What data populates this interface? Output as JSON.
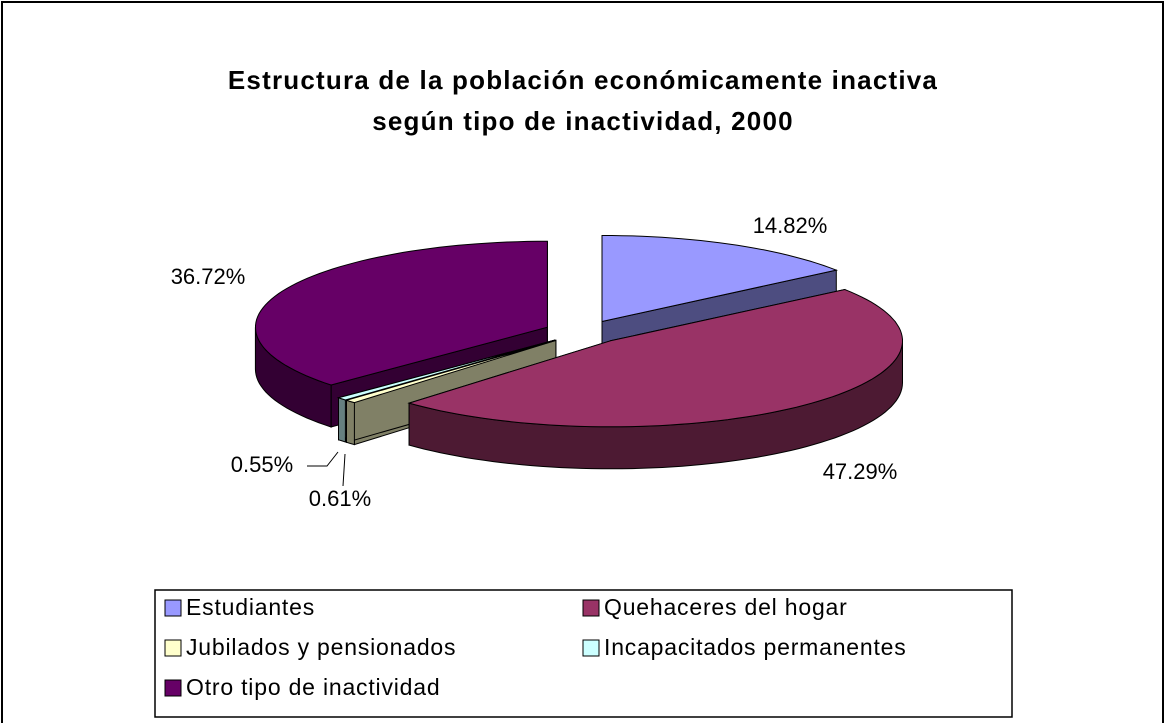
{
  "chart_data": {
    "type": "pie3d",
    "title": "Estructura de la población económicamente inactiva según tipo de inactividad, 2000",
    "categories": [
      "Estudiantes",
      "Quehaceres del hogar",
      "Jubilados y pensionados",
      "Incapacitados permanentes",
      "Otro tipo de inactividad"
    ],
    "values": [
      14.82,
      47.29,
      0.61,
      0.55,
      36.72
    ],
    "value_labels": [
      "14.82%",
      "47.29%",
      "0.61%",
      "0.55%",
      "36.72%"
    ],
    "colors": [
      "#9999ff",
      "#993366",
      "#ffffcc",
      "#ccffff",
      "#660066"
    ],
    "exploded": true
  }
}
